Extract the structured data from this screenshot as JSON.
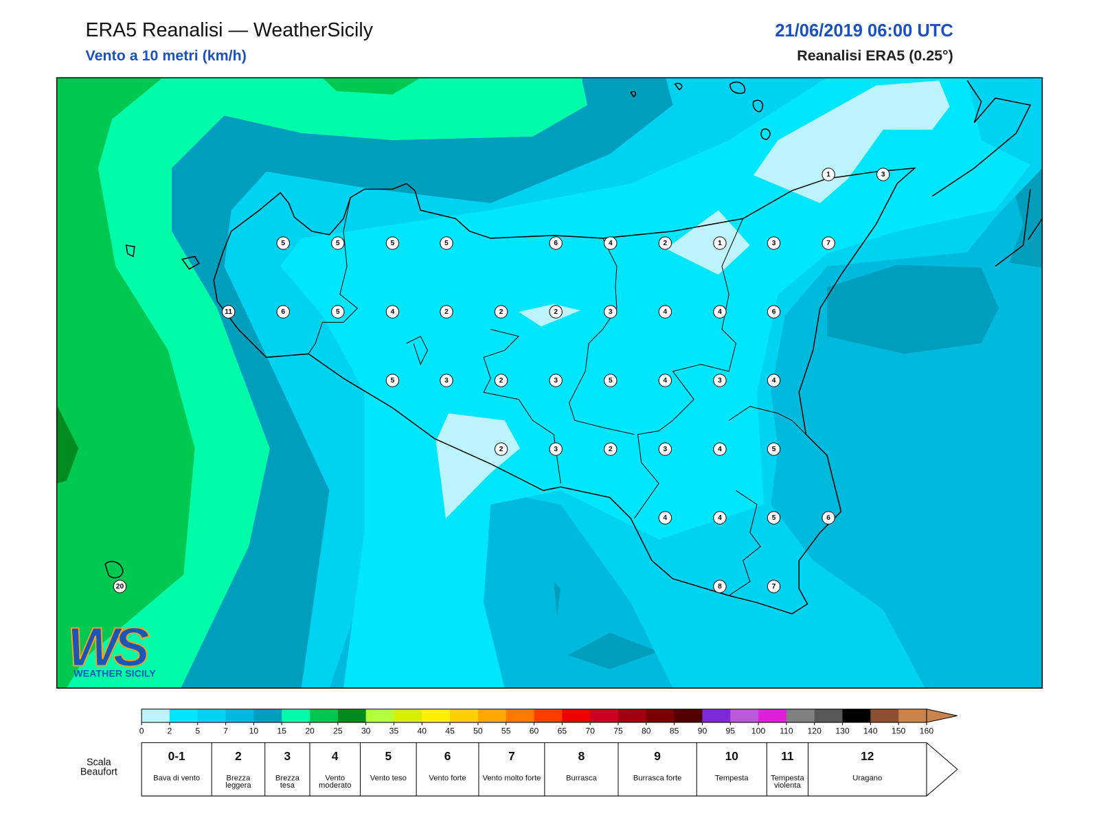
{
  "header": {
    "title": "ERA5 Reanalisi — WeatherSicily",
    "subtitle": "Vento a 10 metri (km/h)",
    "datetime": "21/06/2019 06:00 UTC",
    "source": "Reanalisi ERA5 (0.25°)"
  },
  "logo": {
    "mark": "WS",
    "text": "WEATHER SICILY"
  },
  "stations": [
    1,
    3,
    5,
    5,
    5,
    5,
    6,
    4,
    2,
    1,
    3,
    7,
    11,
    6,
    5,
    4,
    2,
    2,
    2,
    3,
    4,
    4,
    6,
    5,
    3,
    2,
    3,
    5,
    4,
    3,
    4,
    2,
    3,
    2,
    3,
    4,
    5,
    4,
    4,
    5,
    6,
    20,
    8,
    7
  ],
  "colorbar": {
    "colors": [
      "#bdf3fc",
      "#00e6fe",
      "#00d2f2",
      "#00bade",
      "#009ebd",
      "#00fba9",
      "#00c850",
      "#008a20",
      "#b5ff3a",
      "#d8f000",
      "#fff000",
      "#ffd000",
      "#ffa800",
      "#ff7800",
      "#ff3c00",
      "#ee0000",
      "#cc0020",
      "#a00010",
      "#780000",
      "#500000",
      "#7c2ad6",
      "#b85ad6",
      "#e020d6",
      "#808080",
      "#585858",
      "#000000",
      "#8a5030",
      "#c8844c"
    ],
    "ticks": [
      0,
      2,
      5,
      7,
      10,
      15,
      20,
      25,
      30,
      35,
      40,
      45,
      50,
      55,
      60,
      65,
      70,
      75,
      80,
      85,
      90,
      95,
      100,
      110,
      120,
      130,
      140,
      150,
      160
    ]
  },
  "beaufort": {
    "label": "Scala Beaufort",
    "levels": [
      {
        "force": "0-1",
        "desc": "Bava di vento"
      },
      {
        "force": "2",
        "desc": "Brezza leggera"
      },
      {
        "force": "3",
        "desc": "Brezza tesa"
      },
      {
        "force": "4",
        "desc": "Vento moderato"
      },
      {
        "force": "5",
        "desc": "Vento teso"
      },
      {
        "force": "6",
        "desc": "Vento forte"
      },
      {
        "force": "7",
        "desc": "Vento molto forte"
      },
      {
        "force": "8",
        "desc": "Burrasca"
      },
      {
        "force": "9",
        "desc": "Burrasca forte"
      },
      {
        "force": "10",
        "desc": "Tempesta"
      },
      {
        "force": "11",
        "desc": "Tempesta violenta"
      },
      {
        "force": "12",
        "desc": "Uragano"
      }
    ]
  }
}
